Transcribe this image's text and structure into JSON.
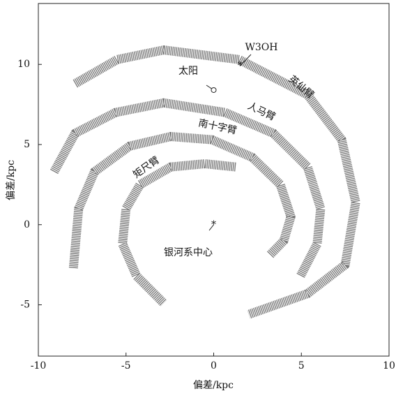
{
  "chart_data": {
    "type": "line",
    "xlabel": "偏差/kpc",
    "ylabel": "偏差/kpc",
    "xlim": [
      -10,
      10
    ],
    "xticks": [
      -10,
      -5,
      0,
      5,
      10
    ],
    "ylim": [
      -8.2,
      13.8
    ],
    "yticks": [
      -5,
      0,
      5,
      10
    ],
    "series": [
      {
        "name": "英仙臂",
        "color": "#7a7a7a",
        "x": [
          -7.9,
          -5.5,
          -2.85,
          1.45,
          5.35,
          7.3,
          8.1,
          7.5,
          5.35,
          2.0
        ],
        "y": [
          8.8,
          10.3,
          10.9,
          10.3,
          8.1,
          5.3,
          1.4,
          -2.5,
          -4.3,
          -5.6
        ]
      },
      {
        "name": "人马臂",
        "color": "#7a7a7a",
        "x": [
          -9.1,
          -7.9,
          -5.6,
          -2.85,
          0.65,
          3.4,
          5.35,
          6.1,
          5.9,
          4.95
        ],
        "y": [
          3.3,
          5.7,
          7.0,
          7.6,
          7.0,
          5.7,
          3.6,
          1.0,
          -1.2,
          -3.2
        ]
      },
      {
        "name": "南十字臂",
        "color": "#7a7a7a",
        "x": [
          -8.0,
          -7.7,
          -6.8,
          -4.8,
          -2.45,
          -0.1,
          2.2,
          3.8,
          4.4,
          4.0,
          3.2
        ],
        "y": [
          -2.7,
          1.0,
          3.3,
          4.9,
          5.5,
          5.3,
          4.2,
          2.5,
          0.5,
          -1.0,
          -1.9
        ]
      },
      {
        "name": "矩尺臂",
        "color": "#7a7a7a",
        "x": [
          1.25,
          -0.5,
          -2.45,
          -4.2,
          -5.0,
          -5.2,
          -4.4,
          -2.85
        ],
        "y": [
          3.6,
          3.8,
          3.6,
          2.5,
          1.0,
          -1.2,
          -3.2,
          -4.9
        ]
      }
    ],
    "points": [
      {
        "label": "W3OH",
        "x": 1.5,
        "y": 9.9
      },
      {
        "label": "太阳",
        "x": 0,
        "y": 8.4
      },
      {
        "label": "银河系中心",
        "x": 0,
        "y": 0
      }
    ]
  }
}
